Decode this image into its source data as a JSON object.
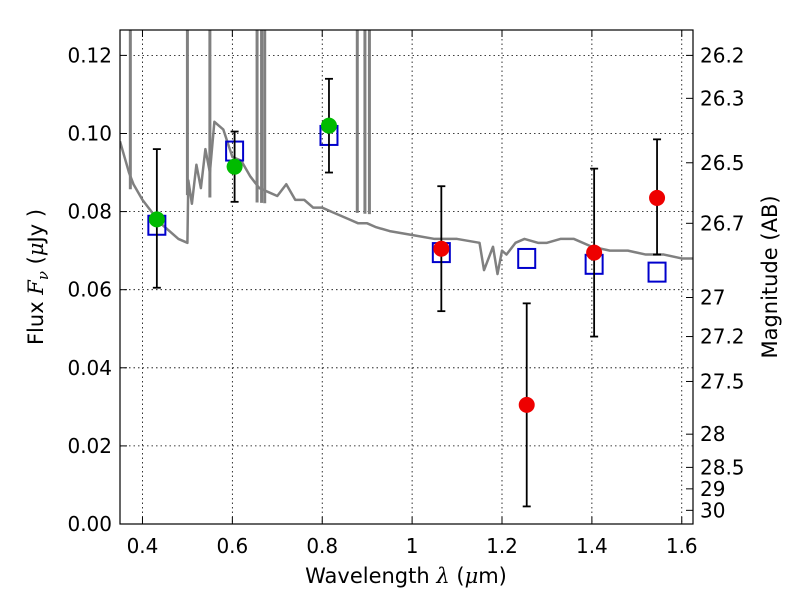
{
  "chart_data": {
    "type": "scatter",
    "xlabel": "Wavelength",
    "xlabel_symbol": "λ",
    "xlabel_unit_open": " (",
    "xlabel_unit_mu": "μ",
    "xlabel_unit_rest": "m)",
    "ylabel": "Flux",
    "ylabel_symbol": "F",
    "ylabel_subscript": "ν",
    "ylabel_unit_open": " (",
    "ylabel_unit_mu": "μ",
    "ylabel_unit_rest": "Jy )",
    "y2label": "Magnitude (AB)",
    "xlim": [
      0.35,
      1.625
    ],
    "ylim": [
      0,
      0.1265
    ],
    "grid": true,
    "x_ticks": [
      0.4,
      0.6,
      0.8,
      1.0,
      1.2,
      1.4,
      1.6
    ],
    "x_tick_labels": [
      "0.4",
      "0.6",
      "0.8",
      "1",
      "1.2",
      "1.4",
      "1.6"
    ],
    "y_ticks": [
      0.0,
      0.02,
      0.04,
      0.06,
      0.08,
      0.1,
      0.12
    ],
    "y_tick_labels": [
      "0.00",
      "0.02",
      "0.04",
      "0.06",
      "0.08",
      "0.10",
      "0.12"
    ],
    "y2_ticks": [
      {
        "flux": 0.12,
        "label": "26.2"
      },
      {
        "flux": 0.109,
        "label": "26.3"
      },
      {
        "flux": 0.0925,
        "label": "26.5"
      },
      {
        "flux": 0.077,
        "label": "26.7"
      },
      {
        "flux": 0.058,
        "label": "27"
      },
      {
        "flux": 0.048,
        "label": "27.2"
      },
      {
        "flux": 0.0365,
        "label": "27.5"
      },
      {
        "flux": 0.023,
        "label": "28"
      },
      {
        "flux": 0.0145,
        "label": "28.5"
      },
      {
        "flux": 0.009,
        "label": "29"
      },
      {
        "flux": 0.0035,
        "label": "30"
      }
    ],
    "colors": {
      "model_line": "#808080",
      "model_points": "#0000cc",
      "observed_optical": "#00bb00",
      "observed_nir": "#ee0000",
      "error_bars": "#000000"
    },
    "model_spectrum": {
      "x": [
        0.35,
        0.36,
        0.37,
        0.38,
        0.4,
        0.42,
        0.44,
        0.46,
        0.48,
        0.5,
        0.502,
        0.51,
        0.52,
        0.53,
        0.54,
        0.55,
        0.56,
        0.58,
        0.6,
        0.62,
        0.64,
        0.66,
        0.68,
        0.7,
        0.72,
        0.74,
        0.76,
        0.78,
        0.8,
        0.82,
        0.84,
        0.86,
        0.88,
        0.9,
        0.92,
        0.95,
        1.0,
        1.05,
        1.1,
        1.15,
        1.16,
        1.18,
        1.19,
        1.2,
        1.21,
        1.23,
        1.25,
        1.28,
        1.3,
        1.33,
        1.36,
        1.4,
        1.44,
        1.48,
        1.52,
        1.56,
        1.6,
        1.625
      ],
      "y": [
        0.098,
        0.094,
        0.09,
        0.087,
        0.083,
        0.08,
        0.077,
        0.075,
        0.073,
        0.072,
        0.088,
        0.082,
        0.092,
        0.086,
        0.096,
        0.09,
        0.103,
        0.101,
        0.094,
        0.093,
        0.089,
        0.086,
        0.085,
        0.084,
        0.087,
        0.083,
        0.083,
        0.081,
        0.081,
        0.08,
        0.079,
        0.078,
        0.077,
        0.077,
        0.076,
        0.075,
        0.074,
        0.073,
        0.073,
        0.072,
        0.065,
        0.071,
        0.064,
        0.07,
        0.069,
        0.072,
        0.073,
        0.072,
        0.072,
        0.073,
        0.073,
        0.071,
        0.07,
        0.07,
        0.069,
        0.069,
        0.068,
        0.068
      ]
    },
    "emission_lines": [
      {
        "x": 0.373,
        "peak": 0.1265
      },
      {
        "x": 0.5,
        "peak": 0.1265
      },
      {
        "x": 0.55,
        "peak": 0.1265
      },
      {
        "x": 0.655,
        "peak": 0.1265
      },
      {
        "x": 0.665,
        "peak": 0.1265
      },
      {
        "x": 0.672,
        "peak": 0.1265
      },
      {
        "x": 0.878,
        "peak": 0.1265
      },
      {
        "x": 0.895,
        "peak": 0.1265
      },
      {
        "x": 0.905,
        "peak": 0.1265
      }
    ],
    "model_photometry": {
      "x": [
        0.432,
        0.605,
        0.815,
        1.065,
        1.255,
        1.405,
        1.545
      ],
      "y": [
        0.0765,
        0.0955,
        0.0995,
        0.0695,
        0.068,
        0.0665,
        0.0645
      ]
    },
    "observed_optical": {
      "x": [
        0.432,
        0.605,
        0.815
      ],
      "y": [
        0.078,
        0.0915,
        0.102
      ],
      "err_low": [
        0.0605,
        0.0825,
        0.09
      ],
      "err_high": [
        0.096,
        0.1005,
        0.114
      ]
    },
    "observed_nir": {
      "x": [
        1.065,
        1.255,
        1.405,
        1.545
      ],
      "y": [
        0.0705,
        0.0305,
        0.0695,
        0.0835
      ],
      "err_low": [
        0.0545,
        0.0045,
        0.048,
        0.069
      ],
      "err_high": [
        0.0865,
        0.0565,
        0.091,
        0.0985
      ]
    }
  }
}
